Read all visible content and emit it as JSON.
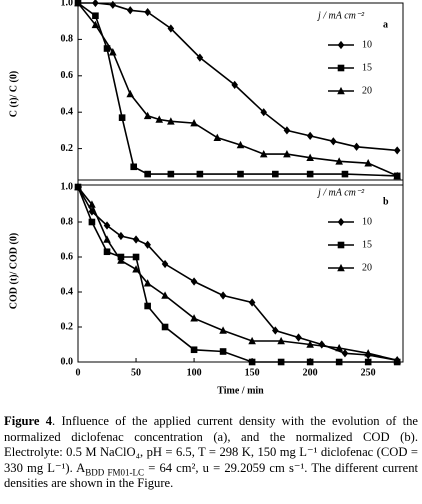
{
  "chart_data": [
    {
      "type": "line",
      "panel_label": "a",
      "y_label": "C (t)/ C (0)",
      "legend_title": "j / mA cm⁻²",
      "xlim": [
        0,
        280
      ],
      "ylim": [
        0,
        1
      ],
      "yticks": [
        {
          "value": 1,
          "label": "1.0"
        },
        0.8,
        0.6,
        0.4,
        0.2
      ],
      "series": [
        {
          "name": "10",
          "color": "#000000",
          "marker": "diamond",
          "x": [
            0,
            15,
            30,
            45,
            60,
            80,
            105,
            135,
            160,
            180,
            200,
            220,
            240,
            275
          ],
          "values": [
            1.0,
            1.0,
            0.99,
            0.96,
            0.95,
            0.86,
            0.7,
            0.55,
            0.4,
            0.3,
            0.27,
            0.24,
            0.21,
            0.19
          ]
        },
        {
          "name": "15",
          "color": "#000000",
          "marker": "square",
          "x": [
            0,
            15,
            25,
            38,
            48,
            60,
            80,
            105,
            140,
            170,
            200,
            230,
            275
          ],
          "values": [
            1.0,
            0.93,
            0.75,
            0.37,
            0.1,
            0.06,
            0.06,
            0.06,
            0.06,
            0.06,
            0.06,
            0.06,
            0.05
          ]
        },
        {
          "name": "20",
          "color": "#000000",
          "marker": "triangle",
          "x": [
            0,
            15,
            30,
            45,
            60,
            70,
            80,
            100,
            120,
            140,
            160,
            180,
            200,
            225,
            250,
            275
          ],
          "values": [
            1.0,
            0.88,
            0.73,
            0.5,
            0.38,
            0.36,
            0.35,
            0.34,
            0.26,
            0.22,
            0.17,
            0.17,
            0.15,
            0.13,
            0.12,
            0.05
          ]
        }
      ]
    },
    {
      "type": "line",
      "panel_label": "b",
      "y_label": "COD (t)/ COD (0)",
      "x_label": "Time / min",
      "legend_title": "j / mA cm⁻²",
      "xlim": [
        0,
        280
      ],
      "ylim": [
        0,
        1.04
      ],
      "xticks": [
        0,
        50,
        100,
        150,
        200,
        250
      ],
      "yticks": [
        {
          "value": 1,
          "label": "1.0"
        },
        0.8,
        0.6,
        0.4,
        0.2,
        {
          "value": 0,
          "label": "0.0"
        }
      ],
      "series": [
        {
          "name": "10",
          "color": "#000000",
          "marker": "diamond",
          "x": [
            0,
            12,
            25,
            37,
            50,
            60,
            75,
            100,
            125,
            150,
            170,
            190,
            210,
            230,
            250,
            275
          ],
          "values": [
            1.0,
            0.86,
            0.78,
            0.72,
            0.7,
            0.67,
            0.56,
            0.46,
            0.38,
            0.34,
            0.18,
            0.14,
            0.1,
            0.05,
            0.04,
            0.01
          ]
        },
        {
          "name": "15",
          "color": "#000000",
          "marker": "square",
          "x": [
            0,
            12,
            25,
            37,
            50,
            60,
            75,
            100,
            125,
            150,
            175,
            200,
            225,
            250,
            275
          ],
          "values": [
            1.0,
            0.8,
            0.63,
            0.6,
            0.6,
            0.32,
            0.2,
            0.07,
            0.06,
            0.0,
            0.0,
            0.0,
            0.0,
            0.0,
            0.0
          ]
        },
        {
          "name": "20",
          "color": "#000000",
          "marker": "triangle",
          "x": [
            0,
            12,
            25,
            37,
            50,
            60,
            75,
            100,
            125,
            150,
            175,
            200,
            225,
            250,
            275
          ],
          "values": [
            1.0,
            0.9,
            0.7,
            0.58,
            0.53,
            0.45,
            0.38,
            0.25,
            0.18,
            0.12,
            0.12,
            0.1,
            0.08,
            0.05,
            0.01
          ]
        }
      ]
    }
  ],
  "caption": [
    {
      "text": "Figure 4",
      "style": "bold"
    },
    {
      "text": ". Influence of the applied current density with the evolution of the normalized diclofenac concentration (a), and the normalized COD (b). Electrolyte: 0.5 M NaClO₄, pH = 6.5, T = 298 K, 150 mg L⁻¹ diclofenac (COD = 330 mg L⁻¹). A"
    },
    {
      "text": "BDD FM01-LC",
      "style": "sub"
    },
    {
      "text": " = 64 cm², u = 29.2059 cm s⁻¹. The different current densities are shown in the Figure."
    }
  ]
}
